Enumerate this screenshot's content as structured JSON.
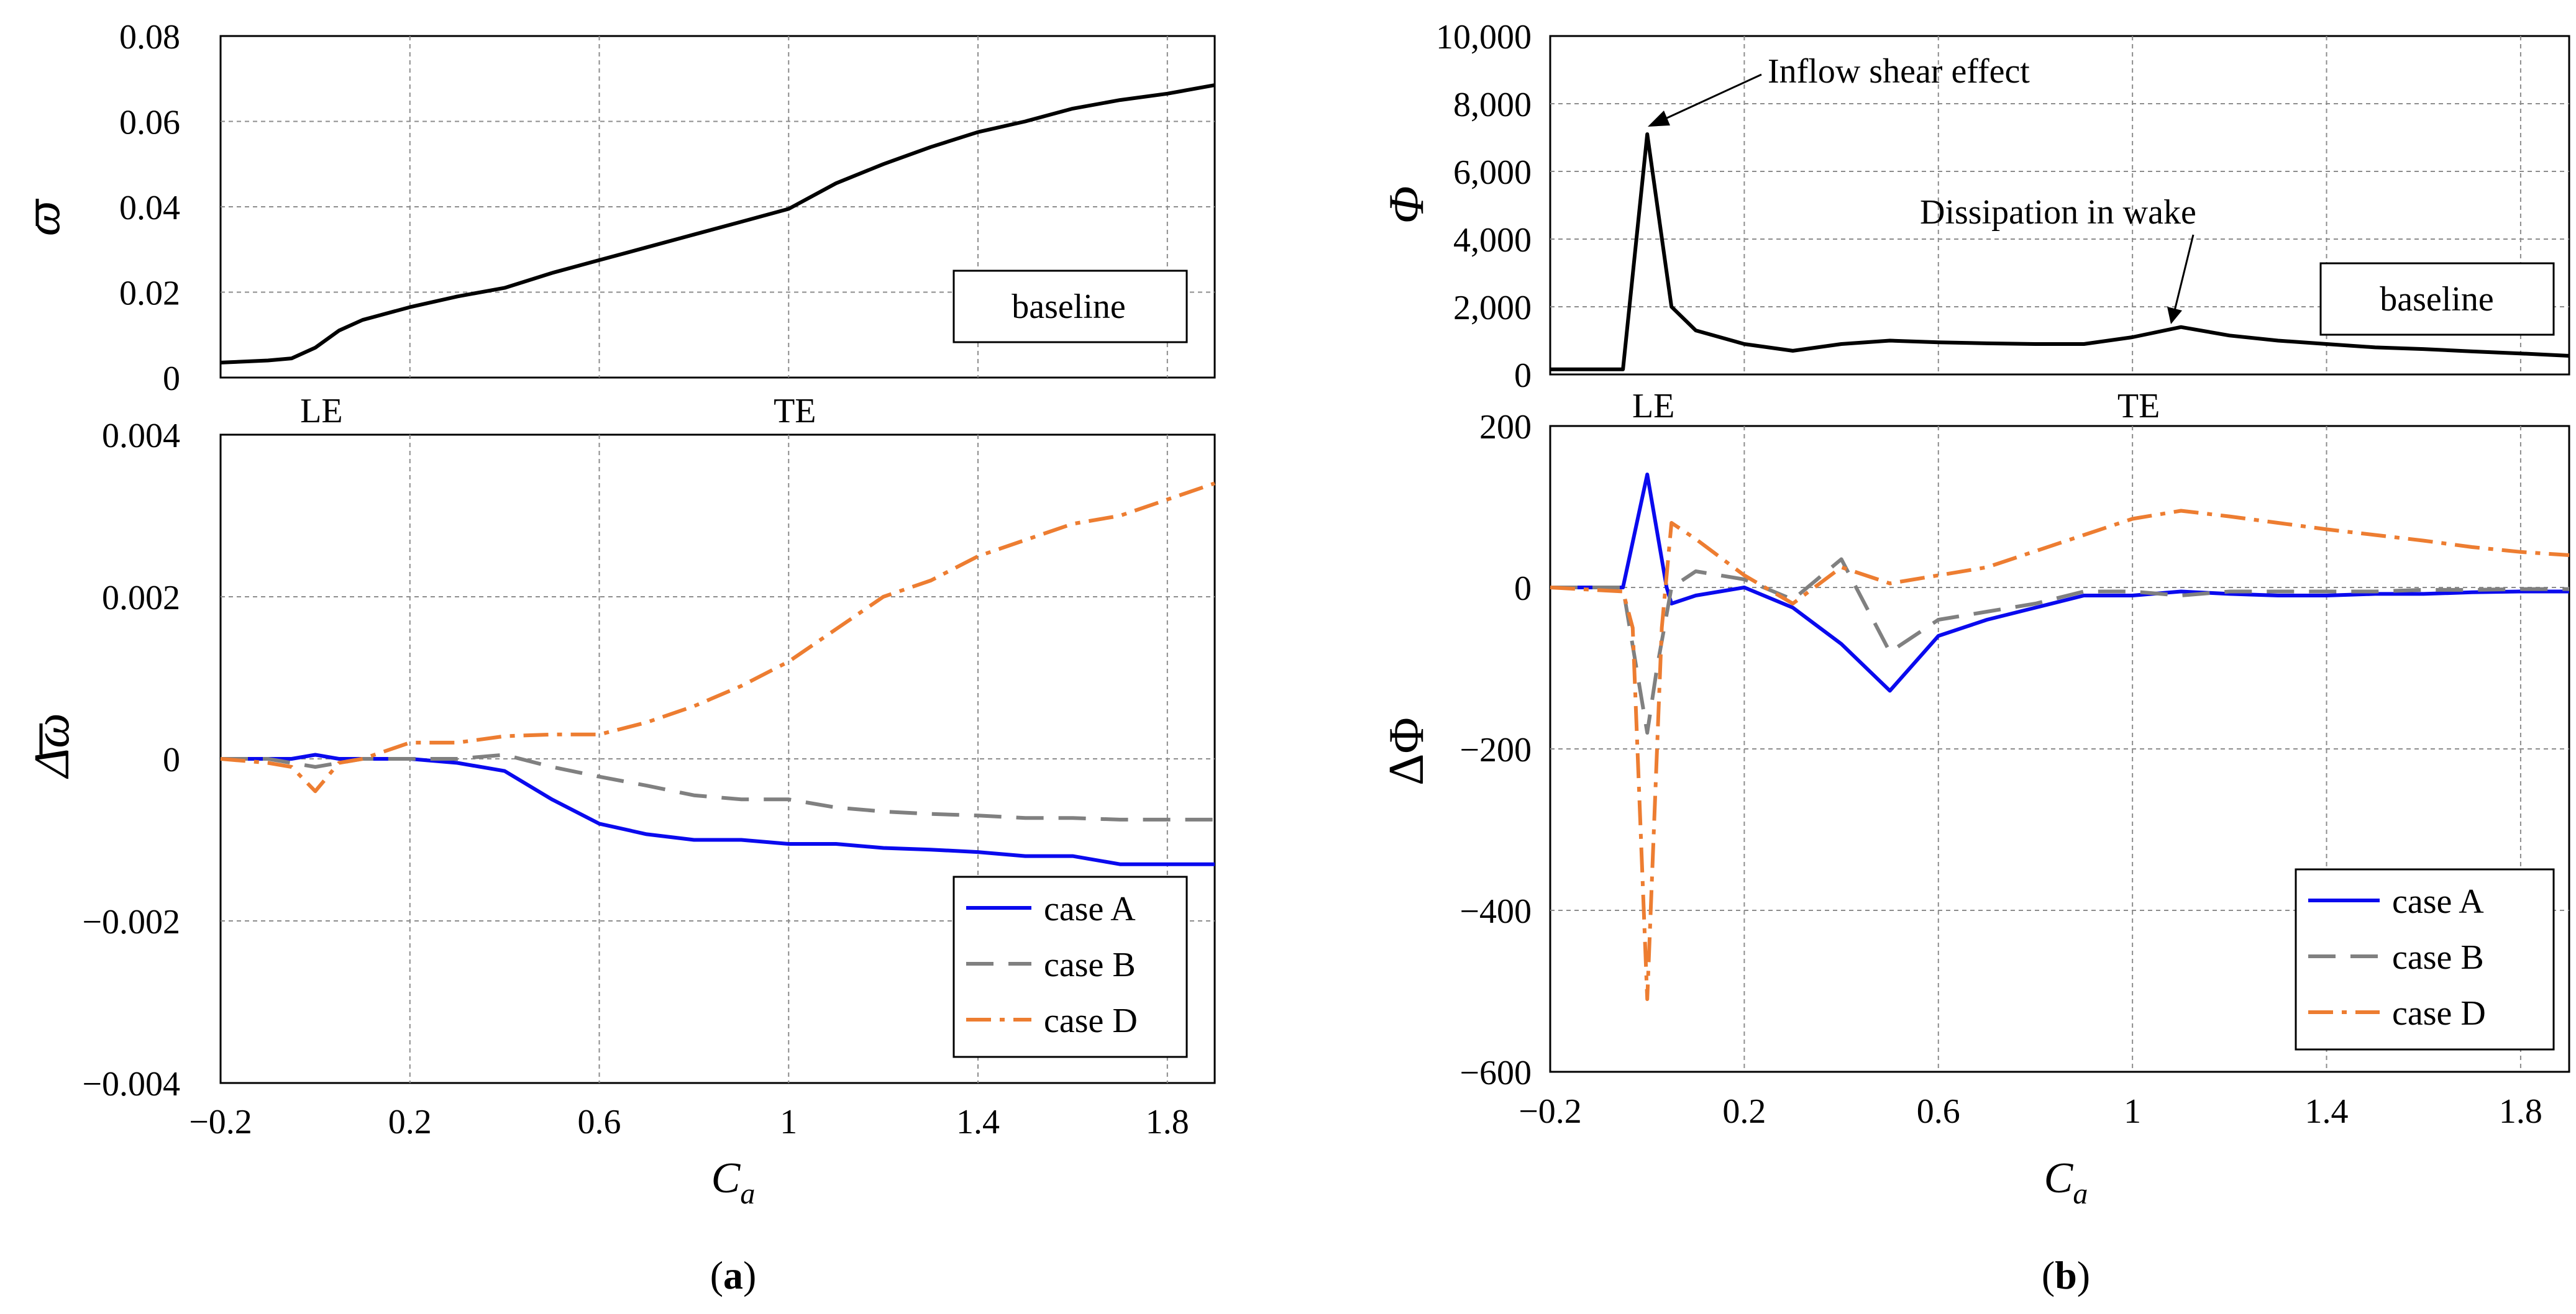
{
  "figure": {
    "label_a": "a",
    "label_b": "b",
    "paren_open": "(",
    "paren_close": ")"
  },
  "chart_data": [
    {
      "id": "a_top",
      "type": "line",
      "ylabel": "ω",
      "legend": "baseline",
      "xlim": [
        -0.2,
        1.9
      ],
      "ylim": [
        0,
        0.08
      ],
      "yticks": [
        0,
        0.02,
        0.04,
        0.06,
        0.08
      ],
      "ytick_labels": [
        "0",
        "0.02",
        "0.04",
        "0.06",
        "0.08"
      ],
      "xgrid": [
        -0.2,
        0.2,
        0.6,
        1.0,
        1.4,
        1.8
      ],
      "markers": [
        {
          "x": 0.0,
          "label": "LE"
        },
        {
          "x": 1.0,
          "label": "TE"
        }
      ],
      "series": [
        {
          "name": "baseline",
          "color": "#000000",
          "dash": "",
          "x": [
            -0.2,
            -0.1,
            -0.05,
            0.0,
            0.05,
            0.1,
            0.2,
            0.3,
            0.4,
            0.5,
            0.6,
            0.7,
            0.8,
            0.9,
            1.0,
            1.1,
            1.2,
            1.3,
            1.4,
            1.5,
            1.6,
            1.7,
            1.8,
            1.9
          ],
          "y": [
            0.0035,
            0.004,
            0.0045,
            0.007,
            0.011,
            0.0135,
            0.0165,
            0.019,
            0.021,
            0.0245,
            0.0275,
            0.0305,
            0.0335,
            0.0365,
            0.0395,
            0.0455,
            0.05,
            0.054,
            0.0575,
            0.06,
            0.063,
            0.065,
            0.0665,
            0.0685
          ]
        }
      ]
    },
    {
      "id": "a_bottom",
      "type": "line",
      "xlabel": "C",
      "xlabel_sub": "a",
      "ylabel": "Δω",
      "xlim": [
        -0.2,
        1.9
      ],
      "ylim": [
        -0.004,
        0.004
      ],
      "xticks": [
        -0.2,
        0.2,
        0.6,
        1.0,
        1.4,
        1.8
      ],
      "xtick_labels": [
        "−0.2",
        "0.2",
        "0.6",
        "1",
        "1.4",
        "1.8"
      ],
      "yticks": [
        -0.004,
        -0.002,
        0,
        0.002,
        0.004
      ],
      "ytick_labels": [
        "−0.004",
        "−0.002",
        "0",
        "0.002",
        "0.004"
      ],
      "series": [
        {
          "name": "case A",
          "color": "#0a0aee",
          "dash": "",
          "x": [
            -0.2,
            -0.1,
            -0.05,
            0.0,
            0.05,
            0.1,
            0.2,
            0.3,
            0.4,
            0.5,
            0.6,
            0.7,
            0.8,
            0.9,
            1.0,
            1.1,
            1.2,
            1.3,
            1.4,
            1.5,
            1.6,
            1.7,
            1.8,
            1.9
          ],
          "y": [
            0.0,
            0.0,
            0.0,
            5e-05,
            0.0,
            0.0,
            0.0,
            -5e-05,
            -0.00015,
            -0.0005,
            -0.0008,
            -0.00093,
            -0.001,
            -0.001,
            -0.00105,
            -0.00105,
            -0.0011,
            -0.00112,
            -0.00115,
            -0.0012,
            -0.0012,
            -0.0013,
            -0.0013,
            -0.0013
          ]
        },
        {
          "name": "case B",
          "color": "#808080",
          "dash": "44,24",
          "x": [
            -0.2,
            -0.1,
            -0.05,
            0.0,
            0.05,
            0.1,
            0.2,
            0.3,
            0.4,
            0.5,
            0.6,
            0.7,
            0.8,
            0.9,
            1.0,
            1.1,
            1.2,
            1.3,
            1.4,
            1.5,
            1.6,
            1.7,
            1.8,
            1.9
          ],
          "y": [
            0.0,
            0.0,
            -5e-05,
            -0.0001,
            -5e-05,
            0.0,
            0.0,
            0.0,
            5e-05,
            -0.0001,
            -0.00022,
            -0.00033,
            -0.00045,
            -0.0005,
            -0.0005,
            -0.0006,
            -0.00065,
            -0.00068,
            -0.0007,
            -0.00073,
            -0.00073,
            -0.00075,
            -0.00075,
            -0.00075
          ]
        },
        {
          "name": "case D",
          "color": "#ed7d31",
          "dash": "40,14,8,14",
          "x": [
            -0.2,
            -0.1,
            -0.05,
            0.0,
            0.05,
            0.1,
            0.2,
            0.3,
            0.4,
            0.5,
            0.6,
            0.7,
            0.8,
            0.9,
            1.0,
            1.1,
            1.2,
            1.3,
            1.4,
            1.5,
            1.6,
            1.7,
            1.8,
            1.9
          ],
          "y": [
            0.0,
            -5e-05,
            -0.0001,
            -0.0004,
            -5e-05,
            0.0,
            0.0002,
            0.0002,
            0.00028,
            0.0003,
            0.0003,
            0.00045,
            0.00065,
            0.0009,
            0.0012,
            0.0016,
            0.002,
            0.0022,
            0.0025,
            0.0027,
            0.0029,
            0.003,
            0.0032,
            0.0034
          ]
        }
      ]
    },
    {
      "id": "b_top",
      "type": "line",
      "ylabel": "Φ",
      "legend": "baseline",
      "xlim": [
        -0.2,
        1.9
      ],
      "ylim": [
        0,
        10000
      ],
      "yticks": [
        0,
        2000,
        4000,
        6000,
        8000,
        10000
      ],
      "ytick_labels": [
        "0",
        "2,000",
        "4,000",
        "6,000",
        "8,000",
        "10,000"
      ],
      "xgrid": [
        -0.2,
        0.2,
        0.6,
        1.0,
        1.4,
        1.8
      ],
      "markers": [
        {
          "x": 0.0,
          "label": "LE"
        },
        {
          "x": 1.0,
          "label": "TE"
        }
      ],
      "annotations": [
        "Inflow shear effect",
        "Dissipation in wake"
      ],
      "series": [
        {
          "name": "baseline",
          "color": "#000000",
          "dash": "",
          "x": [
            -0.2,
            -0.1,
            -0.05,
            0.0,
            0.05,
            0.1,
            0.2,
            0.3,
            0.4,
            0.5,
            0.6,
            0.7,
            0.8,
            0.9,
            1.0,
            1.1,
            1.2,
            1.3,
            1.4,
            1.5,
            1.6,
            1.7,
            1.8,
            1.9
          ],
          "y": [
            150,
            150,
            150,
            7100,
            2000,
            1300,
            900,
            700,
            900,
            1000,
            950,
            920,
            900,
            900,
            1100,
            1400,
            1150,
            1000,
            900,
            800,
            750,
            680,
            620,
            550
          ]
        }
      ]
    },
    {
      "id": "b_bottom",
      "type": "line",
      "xlabel": "C",
      "xlabel_sub": "a",
      "ylabel": "ΔΦ",
      "xlim": [
        -0.2,
        1.9
      ],
      "ylim": [
        -600,
        200
      ],
      "xticks": [
        -0.2,
        0.2,
        0.6,
        1.0,
        1.4,
        1.8
      ],
      "xtick_labels": [
        "−0.2",
        "0.2",
        "0.6",
        "1",
        "1.4",
        "1.8"
      ],
      "yticks": [
        -600,
        -400,
        -200,
        0,
        200
      ],
      "ytick_labels": [
        "−600",
        "−400",
        "−200",
        "0",
        "200"
      ],
      "series": [
        {
          "name": "case A",
          "color": "#0a0aee",
          "dash": "",
          "x": [
            -0.2,
            -0.05,
            0.0,
            0.04,
            0.05,
            0.1,
            0.2,
            0.3,
            0.4,
            0.5,
            0.6,
            0.7,
            0.8,
            0.9,
            1.0,
            1.1,
            1.2,
            1.3,
            1.4,
            1.5,
            1.6,
            1.7,
            1.8,
            1.9
          ],
          "y": [
            0,
            0,
            140,
            0,
            -20,
            -10,
            0,
            -25,
            -70,
            -128,
            -60,
            -40,
            -25,
            -10,
            -10,
            -5,
            -8,
            -10,
            -10,
            -8,
            -8,
            -6,
            -5,
            -5
          ]
        },
        {
          "name": "case B",
          "color": "#808080",
          "dash": "44,24",
          "x": [
            -0.2,
            -0.05,
            0.0,
            0.02,
            0.05,
            0.1,
            0.2,
            0.3,
            0.4,
            0.5,
            0.6,
            0.7,
            0.8,
            0.9,
            1.0,
            1.1,
            1.2,
            1.3,
            1.4,
            1.5,
            1.6,
            1.7,
            1.8,
            1.9
          ],
          "y": [
            0,
            0,
            -180,
            -100,
            0,
            20,
            10,
            -15,
            35,
            -80,
            -40,
            -30,
            -20,
            -5,
            -5,
            -10,
            -5,
            -5,
            -5,
            -5,
            -3,
            -3,
            -2,
            -2
          ]
        },
        {
          "name": "case D",
          "color": "#ed7d31",
          "dash": "40,14,8,14",
          "x": [
            -0.2,
            -0.05,
            -0.03,
            0.0,
            0.03,
            0.05,
            0.1,
            0.2,
            0.3,
            0.4,
            0.5,
            0.6,
            0.7,
            0.8,
            0.9,
            1.0,
            1.1,
            1.2,
            1.3,
            1.4,
            1.5,
            1.6,
            1.7,
            1.8,
            1.9
          ],
          "y": [
            0,
            -5,
            -50,
            -510,
            -50,
            80,
            60,
            15,
            -20,
            25,
            5,
            15,
            25,
            45,
            65,
            85,
            95,
            88,
            80,
            72,
            65,
            58,
            50,
            44,
            40
          ]
        }
      ]
    }
  ]
}
